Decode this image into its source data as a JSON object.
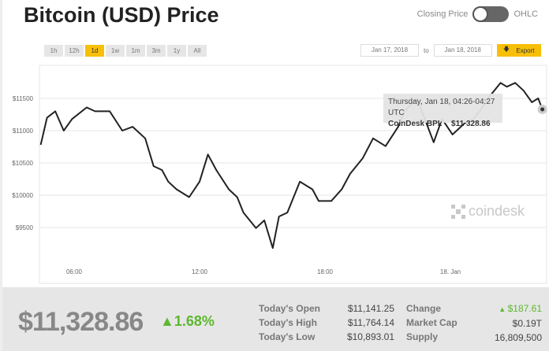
{
  "title": "Bitcoin (USD) Price",
  "toggle": {
    "left_label": "Closing Price",
    "right_label": "OHLC"
  },
  "ranges": [
    "1h",
    "12h",
    "1d",
    "1w",
    "1m",
    "3m",
    "1y",
    "All"
  ],
  "active_range": "1d",
  "date_from": "Jan 17, 2018",
  "date_to": "Jan 18, 2018",
  "to_label": "to",
  "export_label": "Export",
  "tooltip": {
    "time": "Thursday, Jan 18, 04:26-04:27 UTC",
    "label": "CoinDesk BPI:",
    "value": "$11 328.86"
  },
  "logo": "coindesk",
  "chart_data": {
    "type": "line",
    "title": "",
    "xlabel": "",
    "ylabel": "",
    "ylim": [
      9000,
      11900
    ],
    "y_ticks": [
      {
        "v": 11500,
        "label": "$11500"
      },
      {
        "v": 11000,
        "label": "$11000"
      },
      {
        "v": 10500,
        "label": "$10500"
      },
      {
        "v": 10000,
        "label": "$10000"
      },
      {
        "v": 9500,
        "label": "$9500"
      }
    ],
    "x_ticks": [
      {
        "h": 6,
        "label": "06:00"
      },
      {
        "h": 12,
        "label": "12:00"
      },
      {
        "h": 18,
        "label": "18:00"
      },
      {
        "h": 24,
        "label": "18. Jan"
      }
    ],
    "x_unit": "hours since Jan 17 00:00 UTC",
    "series": [
      {
        "name": "CoinDesk BPI",
        "color": "#222222",
        "x": [
          4.4,
          4.7,
          5.1,
          5.5,
          5.9,
          6.6,
          7.0,
          7.7,
          8.3,
          8.8,
          9.4,
          9.8,
          10.2,
          10.5,
          10.9,
          11.5,
          12.0,
          12.4,
          12.8,
          13.4,
          13.8,
          14.1,
          14.7,
          15.1,
          15.5,
          15.8,
          16.2,
          16.8,
          17.4,
          17.7,
          18.3,
          18.8,
          19.2,
          19.8,
          20.3,
          20.9,
          21.5,
          21.8,
          22.4,
          23.2,
          23.6,
          24.1,
          24.7,
          25.1,
          25.4,
          25.8,
          26.4,
          26.7,
          27.1,
          27.5,
          27.9,
          28.2,
          28.4
        ],
        "y": [
          10780,
          11200,
          11300,
          11000,
          11180,
          11360,
          11300,
          11300,
          11000,
          11060,
          10880,
          10450,
          10390,
          10210,
          10090,
          9970,
          10210,
          10630,
          10390,
          10090,
          9970,
          9730,
          9490,
          9610,
          9180,
          9670,
          9730,
          10210,
          10090,
          9910,
          9910,
          10090,
          10330,
          10570,
          10880,
          10760,
          11060,
          11300,
          11500,
          10820,
          11180,
          10940,
          11120,
          11180,
          11300,
          11500,
          11740,
          11680,
          11740,
          11620,
          11440,
          11500,
          11330
        ]
      }
    ]
  },
  "summary": {
    "price": "$11,328.86",
    "change_pct": "1.68%",
    "rows": [
      {
        "label": "Today's Open",
        "value": "$11,141.25",
        "label2": "Change",
        "value2": "$187.61"
      },
      {
        "label": "Today's High",
        "value": "$11,764.14",
        "label2": "Market Cap",
        "value2": "$0.19T"
      },
      {
        "label": "Today's Low",
        "value": "$10,893.01",
        "label2": "Supply",
        "value2": "16,809,500"
      }
    ]
  }
}
